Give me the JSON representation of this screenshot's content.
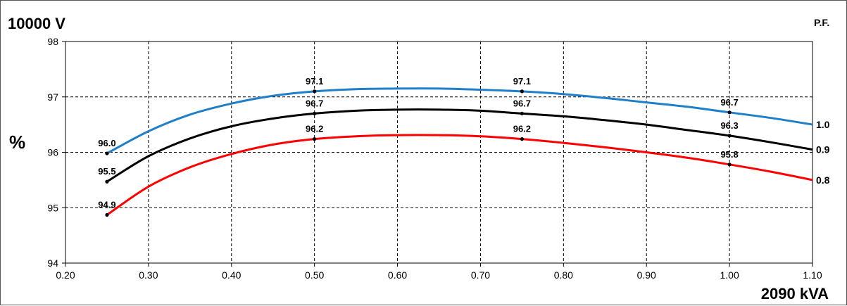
{
  "chart_data": {
    "type": "line",
    "title": "10000 V",
    "xlabel": "2090 kVA",
    "ylabel": "%",
    "legend_title": "P.F.",
    "xlim": [
      0.2,
      1.1
    ],
    "ylim": [
      94,
      98
    ],
    "x_ticks": [
      "0.20",
      "0.30",
      "0.40",
      "0.50",
      "0.60",
      "0.70",
      "0.80",
      "0.90",
      "1.00",
      "1.10"
    ],
    "y_ticks": [
      "94",
      "95",
      "96",
      "97",
      "98"
    ],
    "grid": true,
    "series": [
      {
        "name": "1.0",
        "color": "#1f7fc8",
        "x": [
          0.25,
          0.3,
          0.35,
          0.4,
          0.45,
          0.5,
          0.55,
          0.6,
          0.65,
          0.7,
          0.75,
          0.8,
          0.85,
          0.9,
          0.95,
          1.0,
          1.05,
          1.1
        ],
        "y": [
          95.98,
          96.38,
          96.68,
          96.88,
          97.02,
          97.1,
          97.14,
          97.15,
          97.15,
          97.13,
          97.1,
          97.05,
          96.98,
          96.9,
          96.82,
          96.72,
          96.62,
          96.5
        ],
        "labels": [
          {
            "x": 0.25,
            "y": 95.98,
            "text": "96.0"
          },
          {
            "x": 0.5,
            "y": 97.1,
            "text": "97.1"
          },
          {
            "x": 0.75,
            "y": 97.1,
            "text": "97.1"
          },
          {
            "x": 1.0,
            "y": 96.72,
            "text": "96.7"
          }
        ]
      },
      {
        "name": "0.9",
        "color": "#000000",
        "x": [
          0.25,
          0.3,
          0.35,
          0.4,
          0.45,
          0.5,
          0.55,
          0.6,
          0.65,
          0.7,
          0.75,
          0.8,
          0.85,
          0.9,
          0.95,
          1.0,
          1.05,
          1.1
        ],
        "y": [
          95.47,
          95.93,
          96.25,
          96.47,
          96.61,
          96.7,
          96.75,
          96.77,
          96.77,
          96.75,
          96.7,
          96.65,
          96.58,
          96.5,
          96.4,
          96.3,
          96.18,
          96.05
        ],
        "labels": [
          {
            "x": 0.25,
            "y": 95.47,
            "text": "95.5"
          },
          {
            "x": 0.5,
            "y": 96.7,
            "text": "96.7"
          },
          {
            "x": 0.75,
            "y": 96.7,
            "text": "96.7"
          },
          {
            "x": 1.0,
            "y": 96.3,
            "text": "96.3"
          }
        ]
      },
      {
        "name": "0.8",
        "color": "#ff0000",
        "x": [
          0.25,
          0.3,
          0.35,
          0.4,
          0.45,
          0.5,
          0.55,
          0.6,
          0.65,
          0.7,
          0.75,
          0.8,
          0.85,
          0.9,
          0.95,
          1.0,
          1.05,
          1.1
        ],
        "y": [
          94.87,
          95.38,
          95.73,
          95.97,
          96.14,
          96.24,
          96.29,
          96.31,
          96.31,
          96.29,
          96.24,
          96.17,
          96.09,
          96.0,
          95.9,
          95.78,
          95.65,
          95.5
        ],
        "labels": [
          {
            "x": 0.25,
            "y": 94.87,
            "text": "94.9"
          },
          {
            "x": 0.5,
            "y": 96.24,
            "text": "96.2"
          },
          {
            "x": 0.75,
            "y": 96.24,
            "text": "96.2"
          },
          {
            "x": 1.0,
            "y": 95.78,
            "text": "95.8"
          }
        ]
      }
    ]
  }
}
